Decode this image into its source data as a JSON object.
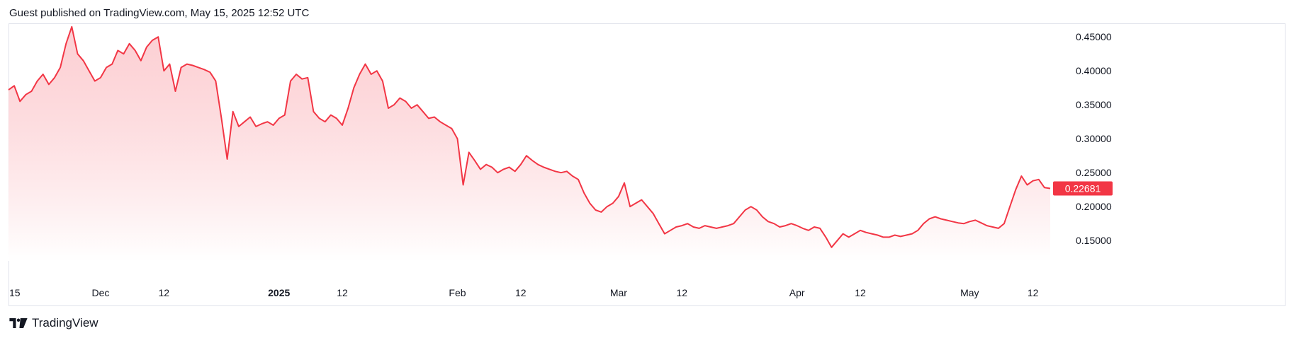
{
  "header": {
    "text": "Guest published on TradingView.com, May 15, 2025 12:52 UTC"
  },
  "footer": {
    "brand": "TradingView"
  },
  "colors": {
    "line": "#f23645",
    "fill_top": "#fbb6bc",
    "fill_bottom": "#ffffff",
    "border": "#e0e3eb"
  },
  "chart_data": {
    "type": "area",
    "title": "",
    "xlabel": "",
    "ylabel": "",
    "ylim": [
      0.12,
      0.47
    ],
    "grid": false,
    "legend": "none",
    "y_ticks": [
      "0.45000",
      "0.40000",
      "0.35000",
      "0.30000",
      "0.25000",
      "0.20000",
      "0.15000"
    ],
    "y_tick_values": [
      0.45,
      0.4,
      0.35,
      0.3,
      0.25,
      0.2,
      0.15
    ],
    "x_ticks": [
      {
        "label": "15",
        "date": "2024-11-15",
        "bold": false
      },
      {
        "label": "Dec",
        "date": "2024-12-01",
        "bold": false
      },
      {
        "label": "12",
        "date": "2024-12-12",
        "bold": false
      },
      {
        "label": "2025",
        "date": "2025-01-01",
        "bold": true
      },
      {
        "label": "12",
        "date": "2025-01-12",
        "bold": false
      },
      {
        "label": "Feb",
        "date": "2025-02-01",
        "bold": false
      },
      {
        "label": "12",
        "date": "2025-02-12",
        "bold": false
      },
      {
        "label": "Mar",
        "date": "2025-03-01",
        "bold": false
      },
      {
        "label": "12",
        "date": "2025-03-12",
        "bold": false
      },
      {
        "label": "Apr",
        "date": "2025-04-01",
        "bold": false
      },
      {
        "label": "12",
        "date": "2025-04-12",
        "bold": false
      },
      {
        "label": "May",
        "date": "2025-05-01",
        "bold": false
      },
      {
        "label": "12",
        "date": "2025-05-12",
        "bold": false
      }
    ],
    "last_price": "0.22681",
    "series": [
      {
        "x": [
          "2024-11-15",
          "2024-11-16",
          "2024-11-17",
          "2024-11-18",
          "2024-11-19",
          "2024-11-20",
          "2024-11-21",
          "2024-11-22",
          "2024-11-23",
          "2024-11-24",
          "2024-11-25",
          "2024-11-26",
          "2024-11-27",
          "2024-11-28",
          "2024-11-29",
          "2024-11-30",
          "2024-12-01",
          "2024-12-02",
          "2024-12-03",
          "2024-12-04",
          "2024-12-05",
          "2024-12-06",
          "2024-12-07",
          "2024-12-08",
          "2024-12-09",
          "2024-12-10",
          "2024-12-11",
          "2024-12-12",
          "2024-12-13",
          "2024-12-14",
          "2024-12-15",
          "2024-12-16",
          "2024-12-17",
          "2024-12-18",
          "2024-12-19",
          "2024-12-20",
          "2024-12-21",
          "2024-12-22",
          "2024-12-23",
          "2024-12-24",
          "2024-12-25",
          "2024-12-26",
          "2024-12-27",
          "2024-12-28",
          "2024-12-29",
          "2024-12-30",
          "2024-12-31",
          "2025-01-01",
          "2025-01-02",
          "2025-01-03",
          "2025-01-04",
          "2025-01-05",
          "2025-01-06",
          "2025-01-07",
          "2025-01-08",
          "2025-01-09",
          "2025-01-10",
          "2025-01-11",
          "2025-01-12",
          "2025-01-13",
          "2025-01-14",
          "2025-01-15",
          "2025-01-16",
          "2025-01-17",
          "2025-01-18",
          "2025-01-19",
          "2025-01-20",
          "2025-01-21",
          "2025-01-22",
          "2025-01-23",
          "2025-01-24",
          "2025-01-25",
          "2025-01-26",
          "2025-01-27",
          "2025-01-28",
          "2025-01-29",
          "2025-01-30",
          "2025-01-31",
          "2025-02-01",
          "2025-02-02",
          "2025-02-03",
          "2025-02-04",
          "2025-02-05",
          "2025-02-06",
          "2025-02-07",
          "2025-02-08",
          "2025-02-09",
          "2025-02-10",
          "2025-02-11",
          "2025-02-12",
          "2025-02-13",
          "2025-02-14",
          "2025-02-15",
          "2025-02-16",
          "2025-02-17",
          "2025-02-18",
          "2025-02-19",
          "2025-02-20",
          "2025-02-21",
          "2025-02-22",
          "2025-02-23",
          "2025-02-24",
          "2025-02-25",
          "2025-02-26",
          "2025-02-27",
          "2025-02-28",
          "2025-03-01",
          "2025-03-02",
          "2025-03-03",
          "2025-03-04",
          "2025-03-05",
          "2025-03-06",
          "2025-03-07",
          "2025-03-08",
          "2025-03-09",
          "2025-03-10",
          "2025-03-11",
          "2025-03-12",
          "2025-03-13",
          "2025-03-14",
          "2025-03-15",
          "2025-03-16",
          "2025-03-17",
          "2025-03-18",
          "2025-03-19",
          "2025-03-20",
          "2025-03-21",
          "2025-03-22",
          "2025-03-23",
          "2025-03-24",
          "2025-03-25",
          "2025-03-26",
          "2025-03-27",
          "2025-03-28",
          "2025-03-29",
          "2025-03-30",
          "2025-03-31",
          "2025-04-01",
          "2025-04-02",
          "2025-04-03",
          "2025-04-04",
          "2025-04-05",
          "2025-04-06",
          "2025-04-07",
          "2025-04-08",
          "2025-04-09",
          "2025-04-10",
          "2025-04-11",
          "2025-04-12",
          "2025-04-13",
          "2025-04-14",
          "2025-04-15",
          "2025-04-16",
          "2025-04-17",
          "2025-04-18",
          "2025-04-19",
          "2025-04-20",
          "2025-04-21",
          "2025-04-22",
          "2025-04-23",
          "2025-04-24",
          "2025-04-25",
          "2025-04-26",
          "2025-04-27",
          "2025-04-28",
          "2025-04-29",
          "2025-04-30",
          "2025-05-01",
          "2025-05-02",
          "2025-05-03",
          "2025-05-04",
          "2025-05-05",
          "2025-05-06",
          "2025-05-07",
          "2025-05-08",
          "2025-05-09",
          "2025-05-10",
          "2025-05-11",
          "2025-05-12",
          "2025-05-13",
          "2025-05-14",
          "2025-05-15"
        ],
        "y": [
          0.372,
          0.378,
          0.355,
          0.365,
          0.37,
          0.385,
          0.395,
          0.38,
          0.39,
          0.405,
          0.44,
          0.465,
          0.425,
          0.415,
          0.4,
          0.385,
          0.39,
          0.405,
          0.41,
          0.43,
          0.425,
          0.44,
          0.43,
          0.415,
          0.435,
          0.445,
          0.45,
          0.4,
          0.41,
          0.37,
          0.405,
          0.41,
          0.408,
          0.405,
          0.402,
          0.398,
          0.385,
          0.33,
          0.27,
          0.34,
          0.318,
          0.325,
          0.332,
          0.318,
          0.322,
          0.325,
          0.32,
          0.33,
          0.335,
          0.385,
          0.395,
          0.388,
          0.39,
          0.34,
          0.33,
          0.325,
          0.335,
          0.33,
          0.32,
          0.345,
          0.375,
          0.395,
          0.41,
          0.395,
          0.4,
          0.385,
          0.345,
          0.35,
          0.36,
          0.355,
          0.345,
          0.35,
          0.34,
          0.33,
          0.332,
          0.325,
          0.32,
          0.315,
          0.3,
          0.232,
          0.28,
          0.268,
          0.255,
          0.262,
          0.258,
          0.25,
          0.255,
          0.258,
          0.252,
          0.262,
          0.275,
          0.268,
          0.262,
          0.258,
          0.255,
          0.252,
          0.25,
          0.252,
          0.245,
          0.24,
          0.22,
          0.205,
          0.195,
          0.192,
          0.2,
          0.205,
          0.215,
          0.235,
          0.2,
          0.205,
          0.21,
          0.2,
          0.19,
          0.175,
          0.16,
          0.165,
          0.17,
          0.172,
          0.175,
          0.17,
          0.168,
          0.172,
          0.17,
          0.168,
          0.17,
          0.172,
          0.175,
          0.185,
          0.195,
          0.2,
          0.195,
          0.185,
          0.178,
          0.175,
          0.17,
          0.172,
          0.175,
          0.172,
          0.168,
          0.165,
          0.17,
          0.168,
          0.155,
          0.14,
          0.15,
          0.16,
          0.155,
          0.16,
          0.165,
          0.162,
          0.16,
          0.158,
          0.155,
          0.155,
          0.158,
          0.156,
          0.158,
          0.16,
          0.165,
          0.175,
          0.182,
          0.185,
          0.182,
          0.18,
          0.178,
          0.176,
          0.175,
          0.178,
          0.18,
          0.176,
          0.172,
          0.17,
          0.168,
          0.175,
          0.2,
          0.225,
          0.245,
          0.232,
          0.238,
          0.24,
          0.228,
          0.22681
        ]
      }
    ]
  }
}
